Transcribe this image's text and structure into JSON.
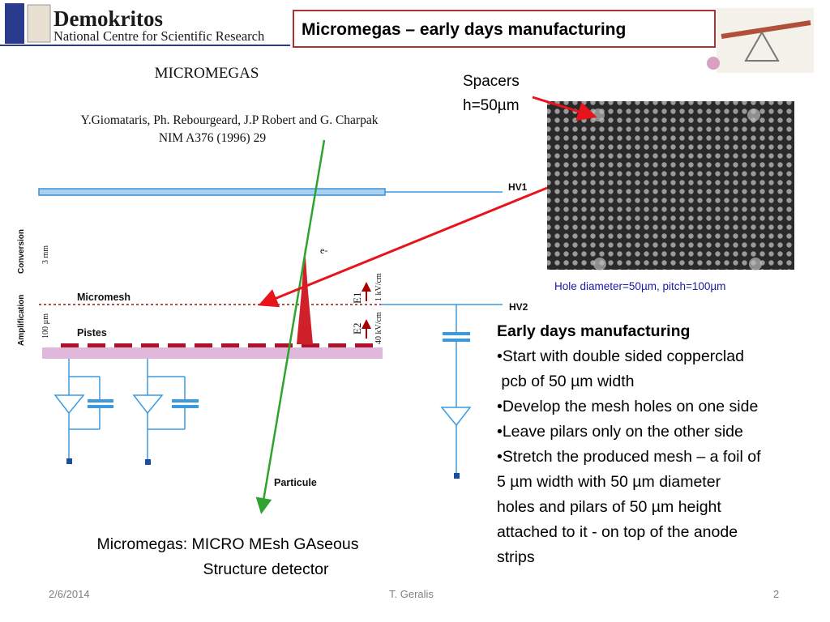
{
  "header": {
    "org_name": "Demokritos",
    "org_subtitle": "National Centre for Scientific Research",
    "title": "Micromegas – early days  manufacturing"
  },
  "diagram": {
    "title": "MICROMEGAS",
    "authors": "Y.Giomataris, Ph. Rebourgeard, J.P Robert and G. Charpak",
    "reference": "NIM A376 (1996) 29",
    "hv1": "HV1",
    "hv2": "HV2",
    "conversion": "Conversion",
    "amplification": "Amplification",
    "conversion_gap": "3 mm",
    "amplification_gap": "100 µm",
    "electron": "e-",
    "micromesh": "Micromesh",
    "pistes": "Pistes",
    "e1": "E1",
    "e1_field": "1 kV/cm",
    "e2": "E2",
    "e2_field": "40 kV/cm",
    "particule": "Particule",
    "caption_line1": "Micromegas: MICRO MEsh GAseous",
    "caption_line2": "Structure detector"
  },
  "photo": {
    "spacers": "Spacers",
    "spacer_height": "h=50µm",
    "caption": "Hole diameter=50µm, pitch=100µm"
  },
  "text_box": {
    "heading": "Early days manufacturing",
    "lines": [
      "•Start with double sided copperclad",
      " pcb of 50 µm width",
      "•Develop the mesh holes on one side",
      "•Leave pilars only on the other side",
      "•Stretch the produced mesh – a foil of",
      "5 µm width with 50 µm diameter",
      "holes and pilars of 50 µm height",
      "attached to it - on top of the anode",
      "strips"
    ]
  },
  "footer": {
    "date": "2/6/2014",
    "author": "T. Geralis",
    "page": "2"
  }
}
